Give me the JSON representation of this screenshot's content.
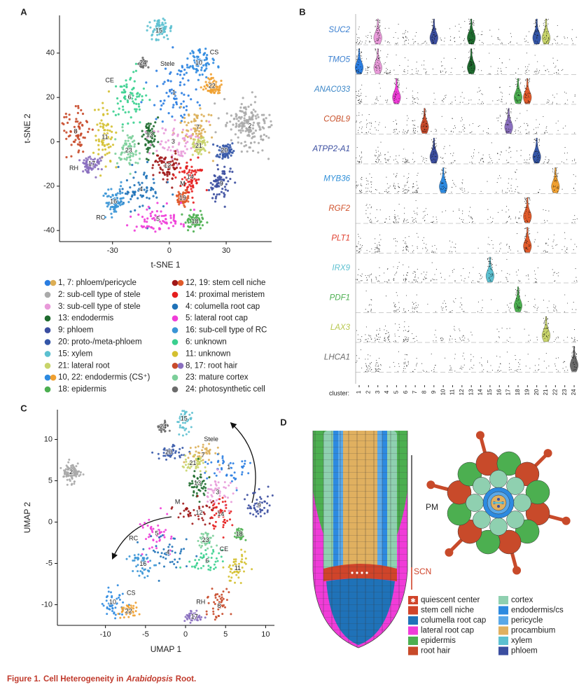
{
  "panel_labels": [
    "A",
    "B",
    "C",
    "D"
  ],
  "cluster_colors": {
    "1": "#2a7de1",
    "2": "#aaaaaa",
    "3": "#e89ad9",
    "4": "#1f72b8",
    "5": "#f03cd8",
    "6": "#3ad08f",
    "7": "#dcae55",
    "8": "#c84a2a",
    "9": "#3b4ea0",
    "10": "#2d8ae0",
    "11": "#d4c030",
    "12": "#a01818",
    "13": "#1e6b2e",
    "14": "#e51e1e",
    "15": "#5cc0d0",
    "16": "#3a95d6",
    "17": "#8a6fbf",
    "18": "#4caf50",
    "19": "#e05a2a",
    "20": "#3456a8",
    "21": "#c8d46a",
    "22": "#f0a030",
    "23": "#7ccf9a",
    "24": "#6b6b6b"
  },
  "tsne": {
    "xlabel": "t-SNE 1",
    "ylabel": "t-SNE 2",
    "xlim": [
      -58,
      54
    ],
    "ylim": [
      -45,
      57
    ],
    "xticks": [
      -30,
      0,
      30
    ],
    "yticks": [
      -40,
      -20,
      0,
      20,
      40
    ],
    "clusters": [
      {
        "label": "15",
        "x": -5.5,
        "y": 50,
        "sd": [
          3,
          2.5
        ]
      },
      {
        "label": "24",
        "x": -14,
        "y": 35.5,
        "sd": [
          1,
          1
        ]
      },
      {
        "label": "10",
        "x": 15.5,
        "y": 35.5,
        "sd": [
          4,
          3
        ]
      },
      {
        "label": "22",
        "x": 22.5,
        "y": 25,
        "sd": [
          2.5,
          2
        ]
      },
      {
        "label": "6",
        "x": -21,
        "y": 20,
        "sd": [
          4,
          5
        ]
      },
      {
        "label": "1",
        "x": 2.5,
        "y": 22,
        "sd": [
          6,
          7
        ]
      },
      {
        "label": "2",
        "x": 42.5,
        "y": 7,
        "sd": [
          6,
          6
        ]
      },
      {
        "label": "8",
        "x": -49.5,
        "y": 4.5,
        "sd": [
          4,
          5
        ]
      },
      {
        "label": "11",
        "x": -34,
        "y": 2,
        "sd": [
          2.5,
          8
        ]
      },
      {
        "label": "7",
        "x": 15,
        "y": 6.5,
        "sd": [
          4,
          5
        ]
      },
      {
        "label": "13",
        "x": -10.5,
        "y": 3,
        "sd": [
          2,
          4
        ]
      },
      {
        "label": "3",
        "x": 2,
        "y": 0,
        "sd": [
          7,
          5
        ]
      },
      {
        "label": "21",
        "x": 15.5,
        "y": -2,
        "sd": [
          2,
          2
        ]
      },
      {
        "label": "20",
        "x": 29,
        "y": -4,
        "sd": [
          2,
          2
        ]
      },
      {
        "label": "23",
        "x": -21.5,
        "y": -4,
        "sd": [
          3,
          4
        ]
      },
      {
        "label": "17",
        "x": -41,
        "y": -10,
        "sd": [
          3,
          2
        ]
      },
      {
        "label": "12",
        "x": -1,
        "y": -11,
        "sd": [
          4,
          3
        ]
      },
      {
        "label": "14",
        "x": 11,
        "y": -16,
        "sd": [
          3,
          4
        ]
      },
      {
        "label": "9",
        "x": 27.5,
        "y": -19,
        "sd": [
          3,
          4
        ]
      },
      {
        "label": "4",
        "x": -15,
        "y": -21.5,
        "sd": [
          6,
          5
        ]
      },
      {
        "label": "19",
        "x": 7,
        "y": -25.5,
        "sd": [
          1.5,
          1.5
        ]
      },
      {
        "label": "16",
        "x": -29.5,
        "y": -27,
        "sd": [
          3,
          3
        ]
      },
      {
        "label": "5",
        "x": -6,
        "y": -35,
        "sd": [
          7,
          3
        ]
      },
      {
        "label": "18",
        "x": 13.5,
        "y": -36,
        "sd": [
          2.5,
          2
        ]
      }
    ],
    "regions": [
      {
        "label": "Stele",
        "x": -1,
        "y": 35
      },
      {
        "label": "CS",
        "x": 23.7,
        "y": 40.3
      },
      {
        "label": "CE",
        "x": -31.5,
        "y": 27.6
      },
      {
        "label": "RH",
        "x": -50.4,
        "y": -12
      },
      {
        "label": "RC",
        "x": -36.3,
        "y": -34.3
      },
      {
        "label": "M",
        "x": 7,
        "y": -19
      }
    ]
  },
  "legend": [
    {
      "label": "1, 7: phloem/pericycle",
      "dots": [
        "1",
        "7"
      ]
    },
    {
      "label": "2: sub-cell type of stele",
      "dots": [
        "2"
      ]
    },
    {
      "label": "3: sub-cell type of stele",
      "dots": [
        "3"
      ]
    },
    {
      "label": "13: endodermis",
      "dots": [
        "13"
      ]
    },
    {
      "label": "9: phloem",
      "dots": [
        "9"
      ]
    },
    {
      "label": "20: proto-/meta-phloem",
      "dots": [
        "20"
      ]
    },
    {
      "label": "15: xylem",
      "dots": [
        "15"
      ]
    },
    {
      "label": "21: lateral root",
      "dots": [
        "21"
      ]
    },
    {
      "label": "10,  22: endodermis (CS⁺)",
      "dots": [
        "10",
        "22"
      ]
    },
    {
      "label": "18: epidermis",
      "dots": [
        "18"
      ]
    },
    {
      "label": "12, 19: stem cell niche",
      "dots": [
        "12",
        "19"
      ]
    },
    {
      "label": "14: proximal meristem",
      "dots": [
        "14"
      ]
    },
    {
      "label": "4: columella root cap",
      "dots": [
        "4"
      ]
    },
    {
      "label": "5: lateral root cap",
      "dots": [
        "5"
      ]
    },
    {
      "label": "16: sub-cell type of RC",
      "dots": [
        "16"
      ]
    },
    {
      "label": "6: unknown",
      "dots": [
        "6"
      ]
    },
    {
      "label": "11: unknown",
      "dots": [
        "11"
      ]
    },
    {
      "label": "8, 17: root hair",
      "dots": [
        "8",
        "17"
      ]
    },
    {
      "label": "23: mature cortex",
      "dots": [
        "23"
      ]
    },
    {
      "label": "24: photosynthetic cell",
      "dots": [
        "24"
      ]
    }
  ],
  "violin": {
    "axis_label": "cluster:",
    "clusters": [
      1,
      2,
      3,
      4,
      5,
      6,
      7,
      8,
      9,
      10,
      11,
      12,
      13,
      14,
      15,
      16,
      17,
      18,
      19,
      20,
      21,
      22,
      23,
      24
    ],
    "genes": [
      {
        "name": "SUC2",
        "color": "#3a7fd0",
        "expressed": [
          3,
          9,
          13,
          20,
          21
        ]
      },
      {
        "name": "TMO5",
        "color": "#3a7fd0",
        "expressed": [
          1,
          3,
          13
        ]
      },
      {
        "name": "ANAC033",
        "color": "#3c87c8",
        "expressed": [
          5,
          18,
          19
        ]
      },
      {
        "name": "COBL9",
        "color": "#c8502a",
        "expressed": [
          8,
          17
        ]
      },
      {
        "name": "ATPP2-A1",
        "color": "#3b4ea0",
        "expressed": [
          9,
          20
        ]
      },
      {
        "name": "MYB36",
        "color": "#2f8fd8",
        "expressed": [
          10,
          22
        ]
      },
      {
        "name": "RGF2",
        "color": "#d0502a",
        "expressed": [
          19
        ]
      },
      {
        "name": "PLT1",
        "color": "#e04030",
        "expressed": [
          19
        ]
      },
      {
        "name": "IRX9",
        "color": "#5cc0d0",
        "expressed": [
          15
        ]
      },
      {
        "name": "PDF1",
        "color": "#4caf50",
        "expressed": [
          18
        ]
      },
      {
        "name": "LAX3",
        "color": "#b8c850",
        "expressed": [
          21
        ]
      },
      {
        "name": "LHCA1",
        "color": "#6b6b6b",
        "expressed": [
          24
        ]
      }
    ]
  },
  "umap": {
    "xlabel": "UMAP 1",
    "ylabel": "UMAP 2",
    "xlim": [
      -16,
      11.1
    ],
    "ylim": [
      -12.5,
      13.6
    ],
    "xticks": [
      -10,
      -5,
      0,
      5,
      10
    ],
    "yticks": [
      -10,
      -5,
      0,
      5,
      10
    ],
    "clusters": [
      {
        "label": "15",
        "x": -0.2,
        "y": 12.5,
        "sd": [
          0.5,
          1
        ]
      },
      {
        "label": "24",
        "x": -2.8,
        "y": 11.5,
        "sd": [
          0.3,
          0.3
        ]
      },
      {
        "label": "20",
        "x": -2.1,
        "y": 8.4,
        "sd": [
          0.8,
          0.4
        ]
      },
      {
        "label": "7",
        "x": 2.2,
        "y": 8.1,
        "sd": [
          1.2,
          0.8
        ]
      },
      {
        "label": "21",
        "x": 0.9,
        "y": 7.1,
        "sd": [
          0.8,
          0.5
        ]
      },
      {
        "label": "1",
        "x": 5.4,
        "y": 6.6,
        "sd": [
          1.5,
          0.9
        ]
      },
      {
        "label": "2",
        "x": -14.3,
        "y": 6,
        "sd": [
          0.5,
          0.5
        ]
      },
      {
        "label": "13",
        "x": 1.5,
        "y": 4.7,
        "sd": [
          0.6,
          1
        ]
      },
      {
        "label": "3",
        "x": 4,
        "y": 3.6,
        "sd": [
          1,
          1
        ]
      },
      {
        "label": "9",
        "x": 9.2,
        "y": 2,
        "sd": [
          0.8,
          0.8
        ]
      },
      {
        "label": "12",
        "x": 1.7,
        "y": 1.1,
        "sd": [
          1.5,
          0.8
        ]
      },
      {
        "label": "14",
        "x": 4.4,
        "y": 0.9,
        "sd": [
          0.7,
          1
        ]
      },
      {
        "label": "18",
        "x": 6.7,
        "y": -1.5,
        "sd": [
          0.3,
          0.3
        ]
      },
      {
        "label": "5",
        "x": -3.6,
        "y": -1.4,
        "sd": [
          1,
          1
        ]
      },
      {
        "label": "23",
        "x": 2.5,
        "y": -2.2,
        "sd": [
          0.5,
          0.5
        ]
      },
      {
        "label": "4",
        "x": -2.2,
        "y": -3.7,
        "sd": [
          1.5,
          1.2
        ]
      },
      {
        "label": "6",
        "x": 2.7,
        "y": -4.7,
        "sd": [
          1.2,
          0.8
        ]
      },
      {
        "label": "16",
        "x": -5.3,
        "y": -5.1,
        "sd": [
          0.8,
          0.7
        ]
      },
      {
        "label": "11",
        "x": 6.5,
        "y": -5.6,
        "sd": [
          0.6,
          1
        ]
      },
      {
        "label": "10",
        "x": -9.1,
        "y": -9.7,
        "sd": [
          0.8,
          1
        ]
      },
      {
        "label": "22",
        "x": -7.1,
        "y": -10.8,
        "sd": [
          0.6,
          0.4
        ]
      },
      {
        "label": "8",
        "x": 4.2,
        "y": -10.2,
        "sd": [
          0.8,
          1
        ]
      },
      {
        "label": "17",
        "x": 1.1,
        "y": -11.5,
        "sd": [
          0.6,
          0.3
        ]
      }
    ],
    "regions": [
      {
        "label": "Stele",
        "x": 3.2,
        "y": 10
      },
      {
        "label": "M",
        "x": -1,
        "y": 2.4
      },
      {
        "label": "RC",
        "x": -6.5,
        "y": -2
      },
      {
        "label": "CE",
        "x": 4.8,
        "y": -3.3
      },
      {
        "label": "CS",
        "x": -6.8,
        "y": -8.6
      },
      {
        "label": "RH",
        "x": 1.9,
        "y": -9.7
      }
    ]
  },
  "diagram": {
    "zones": [
      "PM",
      "SCN"
    ],
    "legend": [
      {
        "label": "quiescent center",
        "color": "#d0442a"
      },
      {
        "label": "stem cell niche",
        "color": "#d0442a"
      },
      {
        "label": "columella root cap",
        "color": "#1f72b8"
      },
      {
        "label": "lateral root cap",
        "color": "#f03cd8"
      },
      {
        "label": "epidermis",
        "color": "#4caf50"
      },
      {
        "label": "root hair",
        "color": "#c84a2a"
      },
      {
        "label": "cortex",
        "color": "#8fd0b0"
      },
      {
        "label": "endodermis/cs",
        "color": "#2d8ae0"
      },
      {
        "label": "pericycle",
        "color": "#5aa8e8"
      },
      {
        "label": "procambium",
        "color": "#e0b060"
      },
      {
        "label": "xylem",
        "color": "#5cc0d0"
      },
      {
        "label": "phloem",
        "color": "#3b4ea0"
      }
    ]
  },
  "caption": [
    "Figure 1.",
    "Cell Heterogeneity in",
    "Arabidopsis",
    "Root."
  ]
}
